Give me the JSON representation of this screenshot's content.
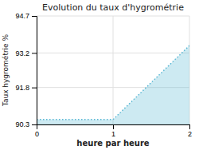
{
  "chart_data": {
    "type": "area",
    "title": "Evolution du taux d'hygrométrie",
    "xlabel": "heure par heure",
    "ylabel": "Taux hygrométrie %",
    "x": [
      0,
      1,
      2
    ],
    "values": [
      90.5,
      90.5,
      93.5
    ],
    "base": 90.3,
    "color": "#5bb8d4",
    "line_style": "dotted",
    "xlim": [
      0,
      2
    ],
    "ylim": [
      90.3,
      94.7
    ],
    "xticks": [
      0,
      1,
      2
    ],
    "yticks": [
      90.3,
      91.8,
      93.2,
      94.7
    ],
    "grid": true
  }
}
